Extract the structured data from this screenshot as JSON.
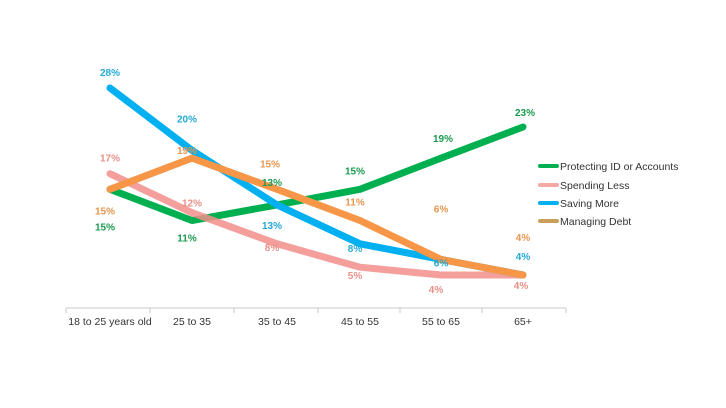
{
  "chart_data": {
    "type": "line",
    "title": "",
    "xlabel": "",
    "ylabel": "",
    "ylim": [
      0,
      30
    ],
    "grid": false,
    "legend_position": "right",
    "categories": [
      "18 to 25 years old",
      "25 to 35",
      "35 to 45",
      "45 to 55",
      "55 to 65",
      "65+"
    ],
    "series": [
      {
        "name": "Protecting ID or Accounts",
        "color": "#00b050",
        "values": [
          15,
          11,
          13,
          15,
          19,
          23
        ],
        "labels": [
          "15%",
          "11%",
          "13%",
          "15%",
          "19%",
          "23%"
        ]
      },
      {
        "name": "Spending Less",
        "color": "#f4a7a3",
        "line_color": "#f28e8a",
        "values": [
          17,
          12,
          8,
          5,
          4,
          4
        ],
        "labels": [
          "17%",
          "12%",
          "8%",
          "5%",
          "4%",
          "4%"
        ]
      },
      {
        "name": "Saving More",
        "color": "#00b0f0",
        "values": [
          28,
          20,
          13,
          8,
          6,
          4
        ],
        "labels": [
          "28%",
          "20%",
          "13%",
          "8%",
          "6%",
          "4%"
        ]
      },
      {
        "name": "Managing Debt",
        "color": "#f79646",
        "legend_color": "#c9a05a",
        "values": [
          15,
          19,
          15,
          11,
          6,
          4
        ],
        "labels": [
          "15%",
          "19%",
          "15%",
          "11%",
          "6%",
          "4%"
        ]
      }
    ]
  }
}
